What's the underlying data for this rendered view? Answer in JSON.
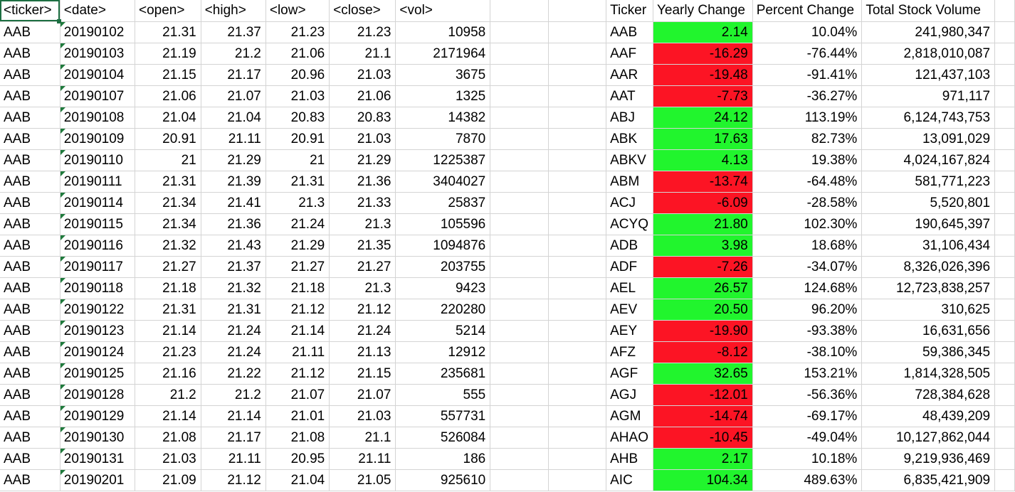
{
  "colors": {
    "positive": "#21f52d",
    "negative": "#fc1424",
    "gridline": "#d4d4d4",
    "selection": "#1d6f42"
  },
  "raw_headers": [
    "<ticker>",
    "<date>",
    "<open>",
    "<high>",
    "<low>",
    "<close>",
    "<vol>"
  ],
  "raw_rows": [
    [
      "AAB",
      "20190102",
      "21.31",
      "21.37",
      "21.23",
      "21.23",
      "10958"
    ],
    [
      "AAB",
      "20190103",
      "21.19",
      "21.2",
      "21.06",
      "21.1",
      "2171964"
    ],
    [
      "AAB",
      "20190104",
      "21.15",
      "21.17",
      "20.96",
      "21.03",
      "3675"
    ],
    [
      "AAB",
      "20190107",
      "21.06",
      "21.07",
      "21.03",
      "21.06",
      "1325"
    ],
    [
      "AAB",
      "20190108",
      "21.04",
      "21.04",
      "20.83",
      "20.83",
      "14382"
    ],
    [
      "AAB",
      "20190109",
      "20.91",
      "21.11",
      "20.91",
      "21.03",
      "7870"
    ],
    [
      "AAB",
      "20190110",
      "21",
      "21.29",
      "21",
      "21.29",
      "1225387"
    ],
    [
      "AAB",
      "20190111",
      "21.31",
      "21.39",
      "21.31",
      "21.36",
      "3404027"
    ],
    [
      "AAB",
      "20190114",
      "21.34",
      "21.41",
      "21.3",
      "21.33",
      "25837"
    ],
    [
      "AAB",
      "20190115",
      "21.34",
      "21.36",
      "21.24",
      "21.3",
      "105596"
    ],
    [
      "AAB",
      "20190116",
      "21.32",
      "21.43",
      "21.29",
      "21.35",
      "1094876"
    ],
    [
      "AAB",
      "20190117",
      "21.27",
      "21.37",
      "21.27",
      "21.27",
      "203755"
    ],
    [
      "AAB",
      "20190118",
      "21.18",
      "21.32",
      "21.18",
      "21.3",
      "9423"
    ],
    [
      "AAB",
      "20190122",
      "21.31",
      "21.31",
      "21.12",
      "21.12",
      "220280"
    ],
    [
      "AAB",
      "20190123",
      "21.14",
      "21.24",
      "21.14",
      "21.24",
      "5214"
    ],
    [
      "AAB",
      "20190124",
      "21.23",
      "21.24",
      "21.11",
      "21.13",
      "12912"
    ],
    [
      "AAB",
      "20190125",
      "21.16",
      "21.22",
      "21.12",
      "21.15",
      "235681"
    ],
    [
      "AAB",
      "20190128",
      "21.2",
      "21.2",
      "21.07",
      "21.07",
      "555"
    ],
    [
      "AAB",
      "20190129",
      "21.14",
      "21.14",
      "21.01",
      "21.03",
      "557731"
    ],
    [
      "AAB",
      "20190130",
      "21.08",
      "21.17",
      "21.08",
      "21.1",
      "526084"
    ],
    [
      "AAB",
      "20190131",
      "21.03",
      "21.11",
      "20.95",
      "21.11",
      "186"
    ],
    [
      "AAB",
      "20190201",
      "21.09",
      "21.12",
      "21.04",
      "21.05",
      "925610"
    ]
  ],
  "summary_headers": [
    "Ticker",
    "Yearly Change",
    "Percent Change",
    "Total Stock Volume"
  ],
  "summary_rows": [
    [
      "AAB",
      "2.14",
      "10.04%",
      "241,980,347"
    ],
    [
      "AAF",
      "-16.29",
      "-76.44%",
      "2,818,010,087"
    ],
    [
      "AAR",
      "-19.48",
      "-91.41%",
      "121,437,103"
    ],
    [
      "AAT",
      "-7.73",
      "-36.27%",
      "971,117"
    ],
    [
      "ABJ",
      "24.12",
      "113.19%",
      "6,124,743,753"
    ],
    [
      "ABK",
      "17.63",
      "82.73%",
      "13,091,029"
    ],
    [
      "ABKV",
      "4.13",
      "19.38%",
      "4,024,167,824"
    ],
    [
      "ABM",
      "-13.74",
      "-64.48%",
      "581,771,223"
    ],
    [
      "ACJ",
      "-6.09",
      "-28.58%",
      "5,520,801"
    ],
    [
      "ACYQ",
      "21.80",
      "102.30%",
      "190,645,397"
    ],
    [
      "ADB",
      "3.98",
      "18.68%",
      "31,106,434"
    ],
    [
      "ADF",
      "-7.26",
      "-34.07%",
      "8,326,026,396"
    ],
    [
      "AEL",
      "26.57",
      "124.68%",
      "12,723,838,257"
    ],
    [
      "AEV",
      "20.50",
      "96.20%",
      "310,625"
    ],
    [
      "AEY",
      "-19.90",
      "-93.38%",
      "16,631,656"
    ],
    [
      "AFZ",
      "-8.12",
      "-38.10%",
      "59,386,345"
    ],
    [
      "AGF",
      "32.65",
      "153.21%",
      "1,814,328,505"
    ],
    [
      "AGJ",
      "-12.01",
      "-56.36%",
      "728,384,628"
    ],
    [
      "AGM",
      "-14.74",
      "-69.17%",
      "48,439,209"
    ],
    [
      "AHAO",
      "-10.45",
      "-49.04%",
      "10,127,862,044"
    ],
    [
      "AHB",
      "2.17",
      "10.18%",
      "9,219,936,469"
    ],
    [
      "AIC",
      "104.34",
      "489.63%",
      "6,835,421,909"
    ]
  ]
}
